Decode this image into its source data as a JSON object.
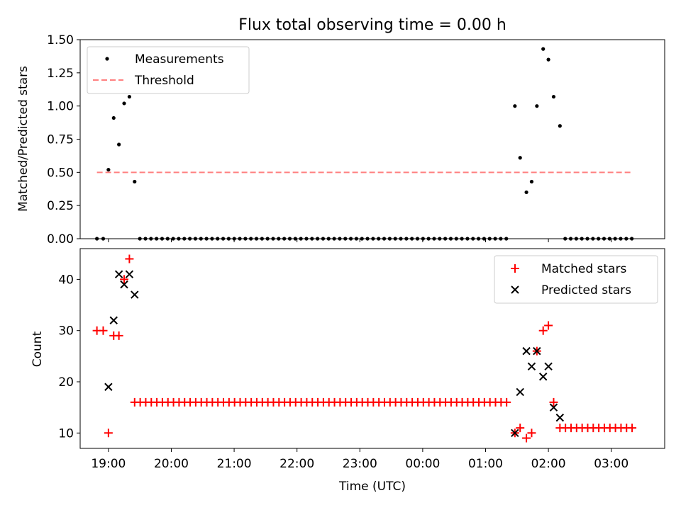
{
  "chart_data": [
    {
      "type": "scatter",
      "title": "Flux total observing time = 0.00 h",
      "xlabel": "",
      "ylabel": "Matched/Predicted stars",
      "xlim": [
        "18:33",
        "03:51"
      ],
      "ylim": [
        0,
        1.5
      ],
      "yticks": [
        "0.00",
        "0.25",
        "0.50",
        "0.75",
        "1.00",
        "1.25",
        "1.50"
      ],
      "legend": "top-left",
      "series": [
        {
          "name": "Measurements",
          "color": "#000000",
          "marker": "dot",
          "points": [
            [
              "18:49",
              0
            ],
            [
              "18:55",
              0
            ],
            [
              "19:00",
              0.52
            ],
            [
              "19:05",
              0.91
            ],
            [
              "19:10",
              0.71
            ],
            [
              "19:15",
              1.02
            ],
            [
              "19:20",
              1.07
            ],
            [
              "19:25",
              0.43
            ],
            [
              "01:28",
              1.0
            ],
            [
              "01:33",
              0.61
            ],
            [
              "01:39",
              0.35
            ],
            [
              "01:44",
              0.43
            ],
            [
              "01:49",
              1.0
            ],
            [
              "01:55",
              1.43
            ],
            [
              "02:00",
              1.35
            ],
            [
              "02:05",
              1.07
            ],
            [
              "02:11",
              0.85
            ]
          ],
          "zero_run": {
            "start": "19:30",
            "end": "01:23",
            "step_min": 5.3,
            "value": 0
          },
          "zero_run_2": {
            "start": "02:16",
            "end": "03:20",
            "step_min": 5.3,
            "value": 0
          }
        },
        {
          "name": "Threshold",
          "color": "#ff8080",
          "style": "dashed",
          "x": [
            "18:49",
            "03:20"
          ],
          "value": 0.5
        }
      ]
    },
    {
      "type": "scatter",
      "title": "",
      "xlabel": "Time (UTC)",
      "ylabel": "Count",
      "xlim": [
        "18:33",
        "03:51"
      ],
      "ylim": [
        7,
        46
      ],
      "yticks": [
        "10",
        "20",
        "30",
        "40"
      ],
      "xticks": [
        "19:00",
        "20:00",
        "21:00",
        "22:00",
        "23:00",
        "00:00",
        "01:00",
        "02:00",
        "03:00"
      ],
      "legend": "top-right",
      "series": [
        {
          "name": "Matched stars",
          "color": "#ff0000",
          "marker": "plus",
          "points": [
            [
              "18:49",
              30
            ],
            [
              "18:55",
              30
            ],
            [
              "19:00",
              10
            ],
            [
              "19:05",
              29
            ],
            [
              "19:10",
              29
            ],
            [
              "19:15",
              40
            ],
            [
              "19:20",
              44
            ],
            [
              "01:28",
              10
            ],
            [
              "01:33",
              11
            ],
            [
              "01:39",
              9
            ],
            [
              "01:44",
              10
            ],
            [
              "01:49",
              26
            ],
            [
              "01:55",
              30
            ],
            [
              "02:00",
              31
            ],
            [
              "02:05",
              16
            ]
          ],
          "run": {
            "start": "19:25",
            "end": "01:23",
            "step_min": 5.3,
            "value": 16
          },
          "run_2": {
            "start": "02:11",
            "end": "03:20",
            "step_min": 5.3,
            "value": 11
          }
        },
        {
          "name": "Predicted stars",
          "color": "#000000",
          "marker": "x",
          "points": [
            [
              "19:00",
              19
            ],
            [
              "19:05",
              32
            ],
            [
              "19:10",
              41
            ],
            [
              "19:15",
              39
            ],
            [
              "19:20",
              41
            ],
            [
              "19:25",
              37
            ],
            [
              "01:28",
              10
            ],
            [
              "01:33",
              18
            ],
            [
              "01:39",
              26
            ],
            [
              "01:44",
              23
            ],
            [
              "01:49",
              26
            ],
            [
              "01:55",
              21
            ],
            [
              "02:00",
              23
            ],
            [
              "02:05",
              15
            ],
            [
              "02:11",
              13
            ]
          ]
        }
      ]
    }
  ]
}
